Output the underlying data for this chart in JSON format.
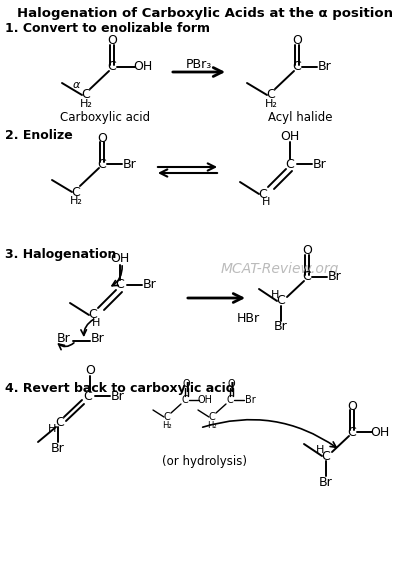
{
  "title": "Halogenation of Carboxylic Acids at the α position",
  "background_color": "#ffffff",
  "text_color": "#000000",
  "watermark": "MCAT-Review.org",
  "watermark_color": "#b0b0b0",
  "sections": [
    "1. Convert to enolizable form",
    "2. Enolize",
    "3. Halogenation",
    "4. Revert back to carboxylic acid"
  ],
  "labels": {
    "carboxylic_acid": "Carboxylic acid",
    "acyl_halide": "Acyl halide",
    "pbr3": "PBr₃",
    "hbr": "HBr",
    "or_hydrolysis": "(or hydrolysis)"
  }
}
